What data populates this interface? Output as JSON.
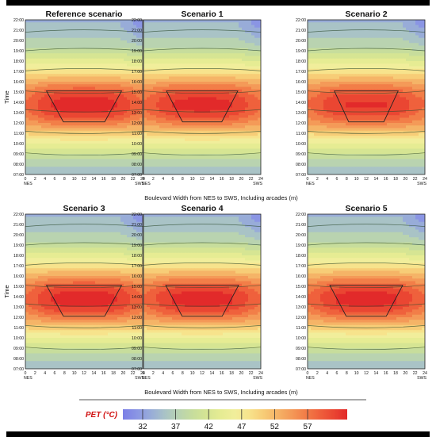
{
  "chart_data": {
    "type": "heatmap",
    "panels": [
      {
        "title": "Reference scenario",
        "hot_core": 1.0
      },
      {
        "title": "Scenario 1",
        "hot_core": 0.95
      },
      {
        "title": "Scenario 2",
        "hot_core": 0.85
      },
      {
        "title": "Scenario 3",
        "hot_core": 1.0
      },
      {
        "title": "Scenario 4",
        "hot_core": 0.97
      },
      {
        "title": "Scenario 5",
        "hot_core": 0.97
      }
    ],
    "ylabel": "Time",
    "xlabel": "Boulevard Width from NES to SWS, Including arcades (m)",
    "y_ticks": [
      "22:00",
      "21:00",
      "20:00",
      "19:00",
      "18:00",
      "17:00",
      "16:00",
      "15:00",
      "14:00",
      "13:00",
      "12:00",
      "11:00",
      "10:00",
      "09:00",
      "08:00",
      "07:00"
    ],
    "x_ticks": [
      "0",
      "2",
      "4",
      "6",
      "8",
      "10",
      "12",
      "14",
      "16",
      "18",
      "20",
      "22",
      "24"
    ],
    "x_end_labels": {
      "left": "NES",
      "right": "SWS"
    },
    "xlim": [
      0,
      24
    ],
    "ylim": [
      "07:00",
      "22:00"
    ],
    "colorbar": {
      "title": "PET (°C)",
      "ticks": [
        "32",
        "37",
        "42",
        "47",
        "52",
        "57"
      ],
      "range": [
        29,
        63
      ],
      "colors": [
        "#7b7fe6",
        "#8a95e4",
        "#98acd8",
        "#a9c3c6",
        "#b9d3b0",
        "#c7dd9c",
        "#d6e593",
        "#e6ec93",
        "#f1ee9b",
        "#f7e38c",
        "#f7cd77",
        "#f5b467",
        "#f49a58",
        "#f27e48",
        "#ef613c",
        "#ea4632",
        "#e22a2a"
      ]
    }
  }
}
